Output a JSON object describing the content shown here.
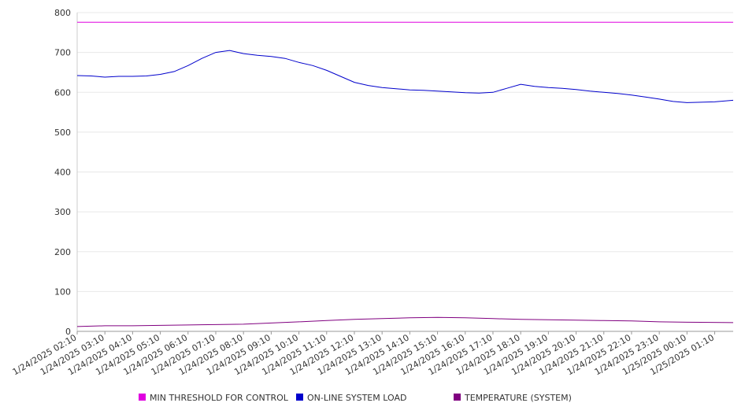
{
  "chart_data": {
    "type": "line",
    "title": "",
    "xlabel": "",
    "ylabel": "",
    "ylim": [
      0,
      800
    ],
    "yticks": [
      0,
      100,
      200,
      300,
      400,
      500,
      600,
      700,
      800
    ],
    "x_tick_labels": [
      "1/24/2025 02:10",
      "1/24/2025 03:10",
      "1/24/2025 04:10",
      "1/24/2025 05:10",
      "1/24/2025 06:10",
      "1/24/2025 07:10",
      "1/24/2025 08:10",
      "1/24/2025 09:10",
      "1/24/2025 10:10",
      "1/24/2025 11:10",
      "1/24/2025 12:10",
      "1/24/2025 13:10",
      "1/24/2025 14:10",
      "1/24/2025 15:10",
      "1/24/2025 16:10",
      "1/24/2025 17:10",
      "1/24/2025 18:10",
      "1/24/2025 19:10",
      "1/24/2025 20:10",
      "1/24/2025 21:10",
      "1/24/2025 22:10",
      "1/24/2025 23:10",
      "1/25/2025 00:10",
      "1/25/2025 01:10"
    ],
    "grid": true,
    "legend_position": "bottom",
    "series": [
      {
        "name": "MIN THRESHOLD FOR CONTROL",
        "color": "#e000e0",
        "points": [
          [
            "1/24/2025 02:10",
            776
          ],
          [
            "1/25/2025 01:50",
            776
          ]
        ]
      },
      {
        "name": "ON-LINE SYSTEM LOAD",
        "color": "#0000cc",
        "points": [
          [
            "1/24/2025 02:10",
            642
          ],
          [
            "1/24/2025 02:40",
            641
          ],
          [
            "1/24/2025 03:10",
            638
          ],
          [
            "1/24/2025 03:40",
            640
          ],
          [
            "1/24/2025 04:10",
            640
          ],
          [
            "1/24/2025 04:40",
            641
          ],
          [
            "1/24/2025 05:10",
            645
          ],
          [
            "1/24/2025 05:40",
            652
          ],
          [
            "1/24/2025 06:10",
            667
          ],
          [
            "1/24/2025 06:40",
            685
          ],
          [
            "1/24/2025 07:10",
            700
          ],
          [
            "1/24/2025 07:40",
            705
          ],
          [
            "1/24/2025 08:10",
            697
          ],
          [
            "1/24/2025 08:40",
            693
          ],
          [
            "1/24/2025 09:10",
            690
          ],
          [
            "1/24/2025 09:40",
            685
          ],
          [
            "1/24/2025 10:10",
            675
          ],
          [
            "1/24/2025 10:40",
            667
          ],
          [
            "1/24/2025 11:10",
            655
          ],
          [
            "1/24/2025 11:40",
            640
          ],
          [
            "1/24/2025 12:10",
            625
          ],
          [
            "1/24/2025 12:40",
            617
          ],
          [
            "1/24/2025 13:10",
            612
          ],
          [
            "1/24/2025 13:40",
            609
          ],
          [
            "1/24/2025 14:10",
            606
          ],
          [
            "1/24/2025 14:40",
            605
          ],
          [
            "1/24/2025 15:10",
            603
          ],
          [
            "1/24/2025 15:40",
            601
          ],
          [
            "1/24/2025 16:10",
            599
          ],
          [
            "1/24/2025 16:40",
            598
          ],
          [
            "1/24/2025 17:10",
            600
          ],
          [
            "1/24/2025 17:40",
            610
          ],
          [
            "1/24/2025 18:10",
            620
          ],
          [
            "1/24/2025 18:40",
            615
          ],
          [
            "1/24/2025 19:10",
            612
          ],
          [
            "1/24/2025 19:40",
            610
          ],
          [
            "1/24/2025 20:10",
            607
          ],
          [
            "1/24/2025 20:40",
            603
          ],
          [
            "1/24/2025 21:10",
            600
          ],
          [
            "1/24/2025 21:40",
            597
          ],
          [
            "1/24/2025 22:10",
            593
          ],
          [
            "1/24/2025 22:40",
            588
          ],
          [
            "1/24/2025 23:10",
            583
          ],
          [
            "1/24/2025 23:40",
            577
          ],
          [
            "1/25/2025 00:10",
            574
          ],
          [
            "1/25/2025 00:40",
            575
          ],
          [
            "1/25/2025 01:10",
            576
          ],
          [
            "1/25/2025 01:50",
            580
          ]
        ]
      },
      {
        "name": "TEMPERATURE (SYSTEM)",
        "color": "#800080",
        "points": [
          [
            "1/24/2025 02:10",
            12
          ],
          [
            "1/24/2025 03:10",
            14
          ],
          [
            "1/24/2025 04:10",
            14
          ],
          [
            "1/24/2025 05:10",
            15
          ],
          [
            "1/24/2025 06:10",
            16
          ],
          [
            "1/24/2025 07:10",
            17
          ],
          [
            "1/24/2025 08:10",
            18
          ],
          [
            "1/24/2025 09:10",
            21
          ],
          [
            "1/24/2025 10:10",
            24
          ],
          [
            "1/24/2025 11:10",
            27
          ],
          [
            "1/24/2025 12:10",
            30
          ],
          [
            "1/24/2025 13:10",
            32
          ],
          [
            "1/24/2025 14:10",
            34
          ],
          [
            "1/24/2025 15:10",
            35
          ],
          [
            "1/24/2025 16:10",
            34
          ],
          [
            "1/24/2025 17:10",
            32
          ],
          [
            "1/24/2025 18:10",
            30
          ],
          [
            "1/24/2025 19:10",
            29
          ],
          [
            "1/24/2025 20:10",
            28
          ],
          [
            "1/24/2025 21:10",
            27
          ],
          [
            "1/24/2025 22:10",
            26
          ],
          [
            "1/24/2025 23:10",
            24
          ],
          [
            "1/25/2025 00:10",
            23
          ],
          [
            "1/25/2025 01:50",
            22
          ]
        ]
      }
    ]
  }
}
